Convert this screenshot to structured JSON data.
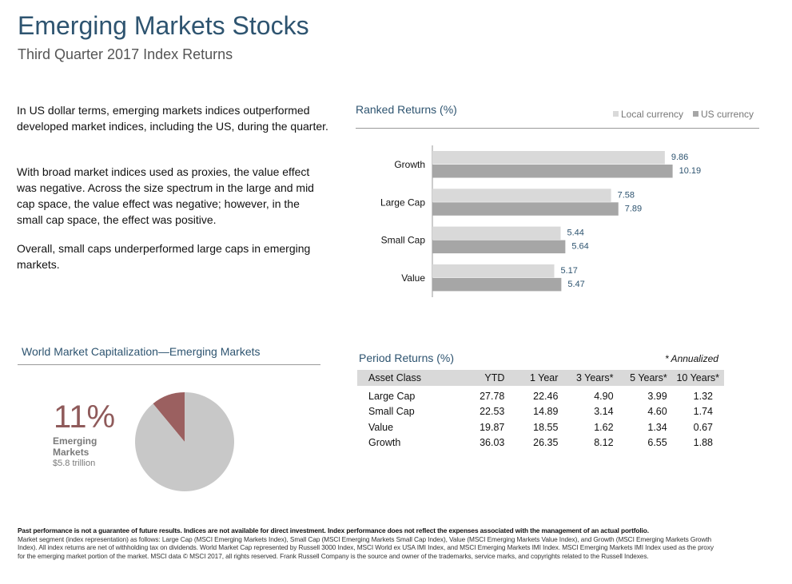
{
  "header": {
    "title": "Emerging Markets Stocks",
    "subtitle": "Third Quarter 2017 Index Returns"
  },
  "commentary": {
    "p1": "In US dollar terms, emerging markets indices outperformed developed market indices, including the US, during the quarter.",
    "p2": "With broad market indices used as proxies, the value effect was negative. Across the size spectrum in the large and mid cap space, the value effect was negative; however, in the small cap space, the effect was positive.",
    "p3": "Overall, small caps underperformed large caps in emerging markets."
  },
  "ranked": {
    "title": "Ranked Returns (%)"
  },
  "world_cap": {
    "title": "World Market Capitalization—Emerging Markets",
    "percent_label": "11%",
    "segment_label": "Emerging Markets",
    "value_label": "$5.8 trillion"
  },
  "period": {
    "title": "Period Returns (%)",
    "annotation": "* Annualized"
  },
  "footer": {
    "bold": "Past performance is not a guarantee of future results. Indices are not available for direct investment. Index performance does not reflect the expenses associated with the management of an actual portfolio.",
    "text": "Market segment (index representation) as follows: Large Cap (MSCI Emerging Markets Index), Small Cap (MSCI Emerging Markets Small Cap Index), Value (MSCI Emerging Markets Value Index), and Growth (MSCI Emerging Markets Growth Index). All index returns are net of withholding tax on dividends. World Market Cap represented by Russell 3000 Index, MSCI World ex USA IMI Index, and MSCI Emerging Markets IMI Index. MSCI Emerging Markets IMI Index used as the proxy for the emerging market portion of the market. MSCI data © MSCI 2017, all rights reserved. Frank Russell Company is the source and owner of the trademarks, service marks, and copyrights related to the Russell Indexes."
  },
  "colors": {
    "title": "#2e5470",
    "local_bar": "#d9d9d9",
    "us_bar": "#a6a6a6",
    "pie_main": "#c8c8c8",
    "pie_em": "#9b6060"
  },
  "chart_data": [
    {
      "type": "bar",
      "orientation": "horizontal",
      "title": "Ranked Returns (%)",
      "categories": [
        "Growth",
        "Large Cap",
        "Small Cap",
        "Value"
      ],
      "series": [
        {
          "name": "Local currency",
          "values": [
            9.86,
            7.58,
            5.44,
            5.17
          ],
          "color": "#d9d9d9"
        },
        {
          "name": "US currency",
          "values": [
            10.19,
            7.89,
            5.64,
            5.47
          ],
          "color": "#a6a6a6"
        }
      ],
      "xlim": [
        0,
        11
      ],
      "legend": "top-right",
      "grid": false
    },
    {
      "type": "pie",
      "title": "World Market Capitalization—Emerging Markets",
      "slices": [
        {
          "label": "Emerging Markets",
          "value": 11,
          "color": "#9b6060"
        },
        {
          "label": "",
          "value": 89,
          "color": "#c8c8c8"
        }
      ]
    },
    {
      "type": "table",
      "title": "Period Returns (%)",
      "columns": [
        "Asset Class",
        "YTD",
        "1 Year",
        "3 Years*",
        "5 Years*",
        "10 Years*"
      ],
      "rows": [
        [
          "Large Cap",
          "27.78",
          "22.46",
          "4.90",
          "3.99",
          "1.32"
        ],
        [
          "Small Cap",
          "22.53",
          "14.89",
          "3.14",
          "4.60",
          "1.74"
        ],
        [
          "Value",
          "19.87",
          "18.55",
          "1.62",
          "1.34",
          "0.67"
        ],
        [
          "Growth",
          "36.03",
          "26.35",
          "8.12",
          "6.55",
          "1.88"
        ]
      ]
    }
  ]
}
